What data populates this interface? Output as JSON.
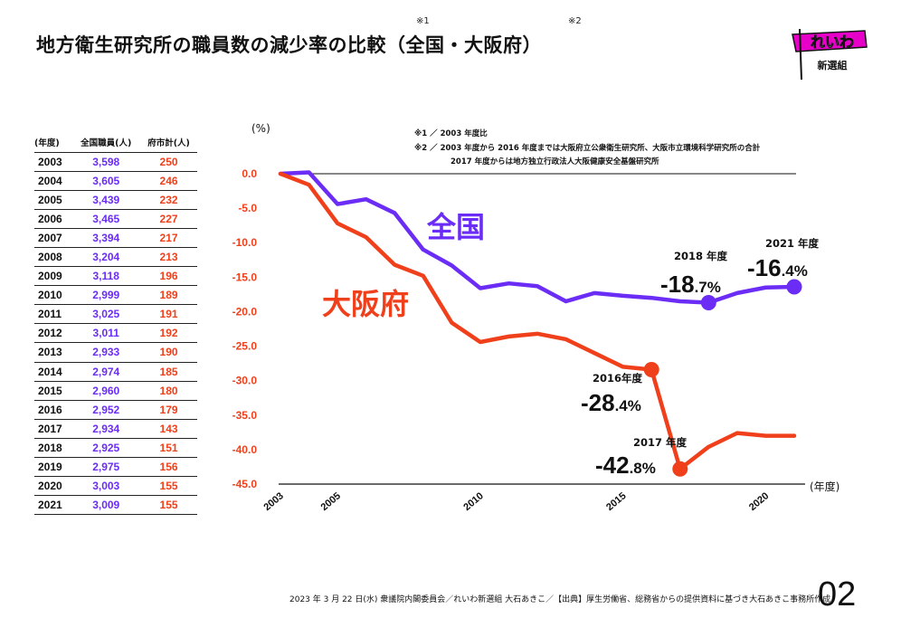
{
  "title": "地方衛生研究所の職員数の減少率の比較（全国・大阪府）",
  "title_marks": [
    "※1",
    "※2"
  ],
  "logo": {
    "main": "れいわ",
    "sub": "新選組"
  },
  "table": {
    "headers": [
      "(年度)",
      "全国職員(人)",
      "府市計(人)"
    ],
    "rows": [
      {
        "year": "2003",
        "national": "3,598",
        "osaka": "250"
      },
      {
        "year": "2004",
        "national": "3,605",
        "osaka": "246"
      },
      {
        "year": "2005",
        "national": "3,439",
        "osaka": "232"
      },
      {
        "year": "2006",
        "national": "3,465",
        "osaka": "227"
      },
      {
        "year": "2007",
        "national": "3,394",
        "osaka": "217"
      },
      {
        "year": "2008",
        "national": "3,204",
        "osaka": "213"
      },
      {
        "year": "2009",
        "national": "3,118",
        "osaka": "196"
      },
      {
        "year": "2010",
        "national": "2,999",
        "osaka": "189"
      },
      {
        "year": "2011",
        "national": "3,025",
        "osaka": "191"
      },
      {
        "year": "2012",
        "national": "3,011",
        "osaka": "192"
      },
      {
        "year": "2013",
        "national": "2,933",
        "osaka": "190"
      },
      {
        "year": "2014",
        "national": "2,974",
        "osaka": "185"
      },
      {
        "year": "2015",
        "national": "2,960",
        "osaka": "180"
      },
      {
        "year": "2016",
        "national": "2,952",
        "osaka": "179"
      },
      {
        "year": "2017",
        "national": "2,934",
        "osaka": "143"
      },
      {
        "year": "2018",
        "national": "2,925",
        "osaka": "151"
      },
      {
        "year": "2019",
        "national": "2,975",
        "osaka": "156"
      },
      {
        "year": "2020",
        "national": "3,003",
        "osaka": "155"
      },
      {
        "year": "2021",
        "national": "3,009",
        "osaka": "155"
      }
    ]
  },
  "notes": [
    "※1 ／ 2003 年度比",
    "※2 ／ 2003 年度から 2016 年度までは大阪府立公衆衛生研究所、大阪市立環境科学研究所の合計",
    "2017 年度からは地方独立行政法人大阪健康安全基盤研究所"
  ],
  "chart_data": {
    "type": "line",
    "ylabel": "(%)",
    "xlabel": "(年度)",
    "ylim": [
      -45,
      0
    ],
    "yticks": [
      "0.0",
      "-5.0",
      "-10.0",
      "-15.0",
      "-20.0",
      "-25.0",
      "-30.0",
      "-35.0",
      "-40.0",
      "-45.0"
    ],
    "xticks": [
      "2003",
      "2005",
      "2010",
      "2015",
      "2020"
    ],
    "x": [
      2003,
      2004,
      2005,
      2006,
      2007,
      2008,
      2009,
      2010,
      2011,
      2012,
      2013,
      2014,
      2015,
      2016,
      2017,
      2018,
      2019,
      2020,
      2021
    ],
    "series": [
      {
        "name": "全国",
        "color": "#6b2cf5",
        "values": [
          0.0,
          0.2,
          -4.4,
          -3.7,
          -5.7,
          -11.0,
          -13.3,
          -16.6,
          -15.9,
          -16.3,
          -18.5,
          -17.3,
          -17.7,
          -18.0,
          -18.5,
          -18.7,
          -17.3,
          -16.5,
          -16.4
        ]
      },
      {
        "name": "大阪府",
        "color": "#f0401b",
        "values": [
          0.0,
          -1.6,
          -7.2,
          -9.2,
          -13.2,
          -14.8,
          -21.6,
          -24.4,
          -23.6,
          -23.2,
          -24.0,
          -26.0,
          -28.0,
          -28.4,
          -42.8,
          -39.6,
          -37.6,
          -38.0,
          -38.0
        ]
      }
    ],
    "callouts": [
      {
        "year": "2018 年度",
        "num": "-18",
        "dec": ".7%"
      },
      {
        "year": "2021 年度",
        "num": "-16",
        "dec": ".4%"
      },
      {
        "year": "2016年度",
        "num": "-28",
        "dec": ".4%"
      },
      {
        "year": "2017 年度",
        "num": "-42",
        "dec": ".8%"
      }
    ]
  },
  "footer": "2023 年 3 月 22 日(水) 衆議院内閣委員会／れいわ新選組 大石あきこ／【出典】厚生労働省、総務省からの提供資料に基づき大石あきこ事務所作成",
  "page_number": "02"
}
